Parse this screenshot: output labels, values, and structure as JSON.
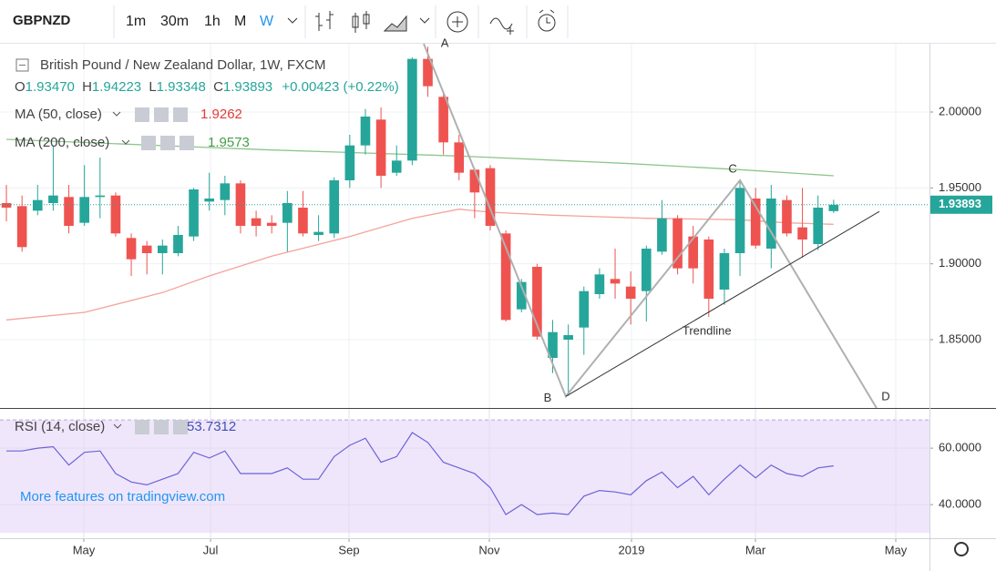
{
  "toolbar": {
    "symbol": "GBPNZD",
    "intervals": [
      "1m",
      "30m",
      "1h",
      "M",
      "W"
    ]
  },
  "chart_data": [
    {
      "type": "candlestick",
      "title": "British Pound / New Zealand Dollar, 1W, FXCM",
      "ohlc": [
        {
          "name": "O",
          "label": "1.93470"
        },
        {
          "name": "H",
          "label": "1.94223"
        },
        {
          "name": "L",
          "label": "1.93348"
        },
        {
          "name": "C",
          "label": "1.93893"
        }
      ],
      "change": "+0.00423 (+0.22%)",
      "up_color": "#26a69a",
      "down_color": "#ef5350",
      "open": [
        1.94,
        1.938,
        1.935,
        1.94,
        1.944,
        1.927,
        1.944,
        1.945,
        1.917,
        1.912,
        1.907,
        1.907,
        1.918,
        1.941,
        1.942,
        1.953,
        1.93,
        1.927,
        1.927,
        1.937,
        1.919,
        1.92,
        1.955,
        1.978,
        1.995,
        1.96,
        1.968,
        2.035,
        2.01,
        1.98,
        1.962,
        1.963,
        1.92,
        1.87,
        1.898,
        1.838,
        1.85,
        1.858,
        1.88,
        1.89,
        1.885,
        1.882,
        1.908,
        1.93,
        1.918,
        1.916,
        1.883,
        1.907,
        1.943,
        1.91,
        1.942,
        1.924,
        1.913,
        1.9347
      ],
      "high": [
        1.952,
        1.945,
        1.952,
        1.978,
        1.952,
        1.965,
        1.97,
        1.947,
        1.92,
        1.915,
        1.916,
        1.925,
        1.95,
        1.96,
        1.958,
        1.955,
        1.935,
        1.932,
        1.948,
        1.948,
        1.932,
        1.957,
        1.985,
        2.002,
        2.003,
        1.978,
        2.036,
        2.043,
        2.012,
        1.985,
        1.963,
        1.965,
        1.922,
        1.89,
        1.9,
        1.863,
        1.86,
        1.885,
        1.897,
        1.91,
        1.895,
        1.912,
        1.942,
        1.932,
        1.925,
        1.918,
        1.91,
        1.955,
        1.95,
        1.952,
        1.945,
        1.95,
        1.945,
        1.94223
      ],
      "low": [
        1.928,
        1.908,
        1.932,
        1.935,
        1.92,
        1.925,
        1.93,
        1.918,
        1.892,
        1.893,
        1.893,
        1.905,
        1.915,
        1.935,
        1.932,
        1.92,
        1.918,
        1.92,
        1.908,
        1.918,
        1.915,
        1.917,
        1.95,
        1.972,
        1.95,
        1.958,
        1.965,
        2.01,
        1.972,
        1.955,
        1.93,
        1.922,
        1.862,
        1.868,
        1.85,
        1.828,
        1.813,
        1.84,
        1.877,
        1.877,
        1.86,
        1.862,
        1.906,
        1.893,
        1.887,
        1.865,
        1.873,
        1.892,
        1.91,
        1.897,
        1.918,
        1.904,
        1.909,
        1.93348
      ],
      "close": [
        1.937,
        1.911,
        1.942,
        1.945,
        1.925,
        1.944,
        1.945,
        1.92,
        1.903,
        1.907,
        1.912,
        1.919,
        1.949,
        1.943,
        1.953,
        1.925,
        1.925,
        1.925,
        1.94,
        1.92,
        1.921,
        1.955,
        1.978,
        1.997,
        1.958,
        1.968,
        2.035,
        2.017,
        1.98,
        1.96,
        1.947,
        1.925,
        1.863,
        1.888,
        1.852,
        1.855,
        1.853,
        1.882,
        1.893,
        1.887,
        1.877,
        1.91,
        1.93,
        1.897,
        1.897,
        1.877,
        1.907,
        1.95,
        1.912,
        1.943,
        1.92,
        1.916,
        1.937,
        1.93893
      ],
      "series": [
        {
          "name": "MA (50, close)",
          "color": "#f4a39c",
          "legend_value": 1.9262,
          "x": [
            0,
            5,
            10,
            13,
            17,
            22,
            26,
            29,
            31,
            35,
            41,
            47,
            50,
            53
          ],
          "values": [
            1.863,
            1.868,
            1.881,
            1.892,
            1.905,
            1.918,
            1.93,
            1.936,
            1.934,
            1.932,
            1.93,
            1.929,
            1.927,
            1.926
          ]
        },
        {
          "name": "MA (200, close)",
          "color": "#8cc68c",
          "legend_value": 1.9573,
          "x": [
            0,
            17,
            29,
            40,
            47,
            53
          ],
          "values": [
            1.982,
            1.975,
            1.971,
            1.966,
            1.962,
            1.958
          ]
        }
      ],
      "last_price": 1.93893,
      "xlim": [
        -0.41,
        59.14
      ],
      "xticks": [
        {
          "value": 4.96,
          "label": "May"
        },
        {
          "value": 13.08,
          "label": "Jul"
        },
        {
          "value": 21.95,
          "label": "Sep"
        },
        {
          "value": 30.94,
          "label": "Nov"
        },
        {
          "value": 40.05,
          "label": "2019"
        },
        {
          "value": 47.99,
          "label": "Mar"
        },
        {
          "value": 56.98,
          "label": "May"
        }
      ],
      "ylim": [
        1.805,
        2.045
      ],
      "yticks": [
        {
          "value": 2.0,
          "label": "2.00000"
        },
        {
          "value": 1.95,
          "label": "1.95000"
        },
        {
          "value": 1.9,
          "label": "1.90000"
        },
        {
          "value": 1.85,
          "label": "1.85000"
        }
      ],
      "pattern": {
        "labels": [
          "A",
          "B",
          "C",
          "D"
        ],
        "x": [
          26.74,
          35.84,
          47.0,
          55.75
        ],
        "y": [
          2.045,
          1.8126,
          1.955,
          1.805
        ]
      },
      "trendline": {
        "label": "Trendline",
        "x": [
          35.84,
          55.93
        ],
        "y": [
          1.8126,
          1.9345
        ]
      }
    },
    {
      "type": "line",
      "title": "RSI (14, close)",
      "legend_value": 53.7312,
      "color": "#6b63d6",
      "values": [
        59,
        59,
        60,
        60.5,
        54,
        58.5,
        59,
        51,
        48,
        47,
        49,
        51,
        58.5,
        56.5,
        59,
        51,
        51,
        51,
        53,
        49,
        49,
        57,
        61,
        63.5,
        55,
        57,
        65.5,
        62,
        55,
        53,
        51,
        46,
        36.5,
        40,
        36.5,
        37,
        36.5,
        43,
        45,
        44.5,
        43.5,
        48.5,
        51.5,
        46,
        50,
        43.5,
        49,
        54,
        49.5,
        54,
        51,
        50,
        53,
        53.7312
      ],
      "band": [
        30,
        70
      ],
      "ylim": [
        28.1,
        73.9
      ],
      "yticks": [
        {
          "value": 60,
          "label": "60.0000"
        },
        {
          "value": 40,
          "label": "40.0000"
        }
      ],
      "watermark": "More features on tradingview.com"
    }
  ]
}
